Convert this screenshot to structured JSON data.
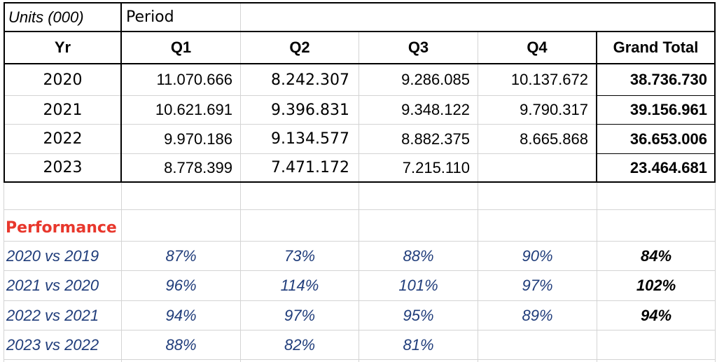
{
  "header": {
    "units_label": "Units (000)",
    "period_label": "Period"
  },
  "columns": [
    "Yr",
    "Q1",
    "Q2",
    "Q3",
    "Q4",
    "Grand Total"
  ],
  "rows": [
    {
      "yr": "2020",
      "q1": "11.070.666",
      "q2": "8.242.307",
      "q3": "9.286.085",
      "q4": "10.137.672",
      "total": "38.736.730"
    },
    {
      "yr": "2021",
      "q1": "10.621.691",
      "q2": "9.396.831",
      "q3": "9.348.122",
      "q4": "9.790.317",
      "total": "39.156.961"
    },
    {
      "yr": "2022",
      "q1": "9.970.186",
      "q2": "9.134.577",
      "q3": "8.882.375",
      "q4": "8.665.868",
      "total": "36.653.006"
    },
    {
      "yr": "2023",
      "q1": "8.778.399",
      "q2": "7.471.172",
      "q3": "7.215.110",
      "q4": "",
      "total": "23.464.681"
    }
  ],
  "performance": {
    "title": "Performance",
    "rows": [
      {
        "label": "2020 vs 2019",
        "q1": "87%",
        "q2": "73%",
        "q3": "88%",
        "q4": "90%",
        "total": "84%"
      },
      {
        "label": "2021 vs 2020",
        "q1": "96%",
        "q2": "114%",
        "q3": "101%",
        "q4": "97%",
        "total": "102%"
      },
      {
        "label": "2022 vs 2021",
        "q1": "94%",
        "q2": "97%",
        "q3": "95%",
        "q4": "89%",
        "total": "94%"
      },
      {
        "label": "2023 vs 2022",
        "q1": "88%",
        "q2": "82%",
        "q3": "81%",
        "q4": "",
        "total": ""
      }
    ]
  },
  "colors": {
    "performance_title": "#e8372c",
    "performance_values": "#1f3c7a",
    "gridlines": "#d4d4d4",
    "borders": "#000000"
  }
}
